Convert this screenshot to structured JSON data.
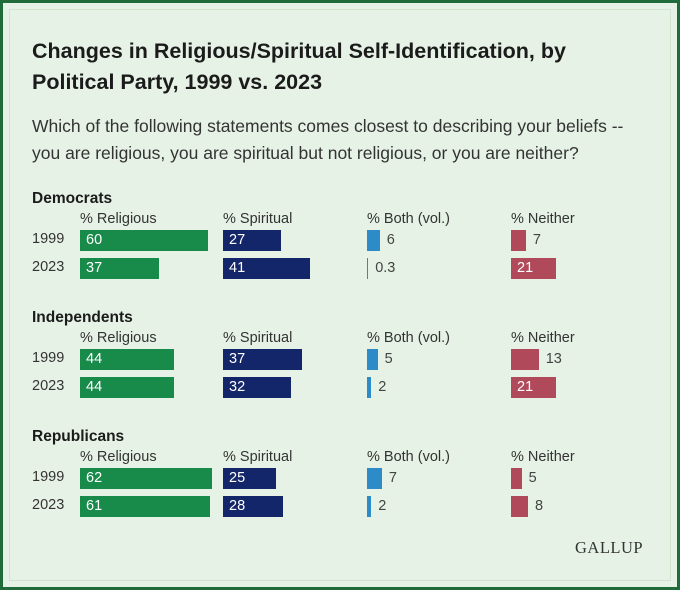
{
  "chart_data": {
    "type": "bar",
    "title": "Changes in Religious/Spiritual Self-Identification, by Political Party, 1999 vs. 2023",
    "subtitle": "Which of the following statements comes closest to describing your beliefs -- you are religious, you are spiritual but not religious, or you are neither?",
    "columns": [
      {
        "label": "% Religious",
        "color": "#188a4a"
      },
      {
        "label": "% Spiritual",
        "color": "#14266a"
      },
      {
        "label": "% Both (vol.)",
        "color": "#2d8bc8"
      },
      {
        "label": "% Neither",
        "color": "#b04a5a"
      }
    ],
    "groups": [
      {
        "name": "Democrats",
        "rows": [
          {
            "year": "1999",
            "values": [
              60,
              27,
              6,
              7
            ],
            "labels": [
              "60",
              "27",
              "6",
              "7"
            ]
          },
          {
            "year": "2023",
            "values": [
              37,
              41,
              0.3,
              21
            ],
            "labels": [
              "37",
              "41",
              "0.3",
              "21"
            ]
          }
        ]
      },
      {
        "name": "Independents",
        "rows": [
          {
            "year": "1999",
            "values": [
              44,
              37,
              5,
              13
            ],
            "labels": [
              "44",
              "37",
              "5",
              "13"
            ]
          },
          {
            "year": "2023",
            "values": [
              44,
              32,
              2,
              21
            ],
            "labels": [
              "44",
              "32",
              "2",
              "21"
            ]
          }
        ]
      },
      {
        "name": "Republicans",
        "rows": [
          {
            "year": "1999",
            "values": [
              62,
              25,
              7,
              5
            ],
            "labels": [
              "62",
              "25",
              "7",
              "5"
            ]
          },
          {
            "year": "2023",
            "values": [
              61,
              28,
              2,
              8
            ],
            "labels": [
              "61",
              "28",
              "2",
              "8"
            ]
          }
        ]
      }
    ]
  },
  "source_logo": "GALLUP",
  "colors": {
    "background": "#e6f2e6",
    "border": "#1f6b3a"
  }
}
